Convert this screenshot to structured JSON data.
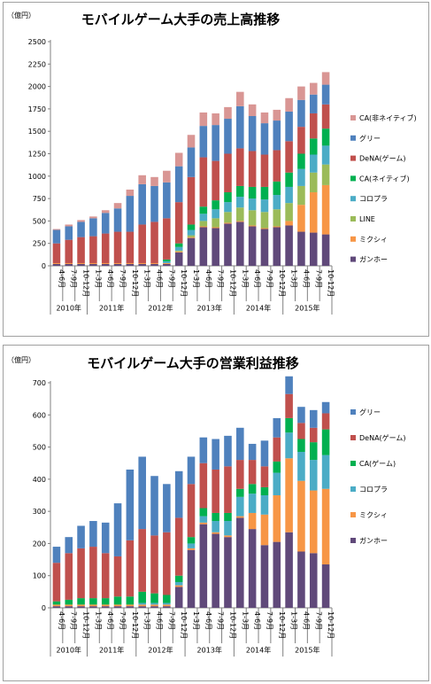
{
  "chart_data": [
    {
      "type": "bar",
      "stacked": true,
      "title": "モバイルゲーム大手の売上高推移",
      "ylabel": "（億円）",
      "ylim": [
        0,
        2500
      ],
      "ytick_step": 250,
      "grid": false,
      "legend_position": "right",
      "categories": [
        "4-6月",
        "7-9月",
        "10-12月",
        "1-3月",
        "4-6月",
        "7-9月",
        "10-12月",
        "1-3月",
        "4-6月",
        "7-9月",
        "10-12月",
        "1-3月",
        "4-6月",
        "7-9月",
        "10-12月",
        "1-3月",
        "4-6月",
        "7-9月",
        "10-12月",
        "1-3月",
        "4-6月",
        "7-9月",
        "10-12月"
      ],
      "year_groups": [
        {
          "label": "2010年",
          "count": 3
        },
        {
          "label": "2011年",
          "count": 4
        },
        {
          "label": "2012年",
          "count": 4
        },
        {
          "label": "2013年",
          "count": 4
        },
        {
          "label": "2014年",
          "count": 4
        },
        {
          "label": "2015年",
          "count": 4
        }
      ],
      "series": [
        {
          "name": "ガンホー",
          "color": "#60497a",
          "values": [
            20,
            20,
            20,
            20,
            20,
            20,
            20,
            20,
            20,
            20,
            150,
            310,
            430,
            420,
            470,
            490,
            440,
            410,
            430,
            450,
            380,
            370,
            350
          ]
        },
        {
          "name": "ミクシィ",
          "color": "#f79646",
          "values": [
            10,
            10,
            10,
            10,
            10,
            10,
            10,
            10,
            10,
            10,
            10,
            10,
            10,
            10,
            10,
            10,
            10,
            10,
            10,
            50,
            300,
            450,
            550
          ]
        },
        {
          "name": "LINE",
          "color": "#9bbb59",
          "values": [
            0,
            0,
            0,
            0,
            0,
            0,
            0,
            0,
            0,
            0,
            10,
            20,
            60,
            100,
            120,
            150,
            170,
            180,
            190,
            200,
            210,
            220,
            230
          ]
        },
        {
          "name": "コロプラ",
          "color": "#4bacc6",
          "values": [
            0,
            0,
            0,
            0,
            0,
            0,
            0,
            0,
            0,
            20,
            40,
            60,
            80,
            100,
            110,
            120,
            130,
            140,
            160,
            180,
            190,
            200,
            210
          ]
        },
        {
          "name": "CA(ネイティブ)",
          "color": "#00b050",
          "values": [
            0,
            0,
            0,
            0,
            0,
            0,
            0,
            0,
            0,
            20,
            40,
            60,
            80,
            100,
            110,
            120,
            130,
            140,
            150,
            160,
            170,
            180,
            190
          ]
        },
        {
          "name": "DeNA(ゲーム)",
          "color": "#c0504d",
          "values": [
            220,
            260,
            290,
            300,
            330,
            350,
            350,
            430,
            460,
            460,
            460,
            530,
            550,
            440,
            430,
            420,
            400,
            360,
            350,
            350,
            300,
            280,
            270
          ]
        },
        {
          "name": "グリー",
          "color": "#4f81bd",
          "values": [
            150,
            150,
            170,
            200,
            230,
            260,
            400,
            450,
            400,
            400,
            400,
            330,
            350,
            400,
            390,
            470,
            390,
            350,
            330,
            330,
            300,
            210,
            220
          ]
        },
        {
          "name": "CA(非ネイティブ)",
          "color": "#d99694",
          "values": [
            10,
            20,
            20,
            20,
            30,
            60,
            70,
            100,
            100,
            130,
            150,
            140,
            150,
            130,
            130,
            160,
            130,
            120,
            120,
            150,
            150,
            130,
            140
          ]
        }
      ]
    },
    {
      "type": "bar",
      "stacked": true,
      "title": "モバイルゲーム大手の営業利益推移",
      "ylabel": "（億円）",
      "ylim": [
        0,
        700
      ],
      "ytick_step": 100,
      "grid": false,
      "legend_position": "right",
      "categories": [
        "4-6月",
        "7-9月",
        "10-12月",
        "1-3月",
        "4-6月",
        "7-9月",
        "10-12月",
        "1-3月",
        "4-6月",
        "7-9月",
        "10-12月",
        "1-3月",
        "4-6月",
        "7-9月",
        "10-12月",
        "1-3月",
        "4-6月",
        "7-9月",
        "10-12月",
        "1-3月",
        "4-6月",
        "7-9月",
        "10-12月"
      ],
      "year_groups": [
        {
          "label": "2010年",
          "count": 3
        },
        {
          "label": "2011年",
          "count": 4
        },
        {
          "label": "2012年",
          "count": 4
        },
        {
          "label": "2013年",
          "count": 4
        },
        {
          "label": "2014年",
          "count": 4
        },
        {
          "label": "2015年",
          "count": 4
        }
      ],
      "series": [
        {
          "name": "ガンホー",
          "color": "#60497a",
          "values": [
            5,
            5,
            5,
            5,
            5,
            5,
            5,
            5,
            5,
            5,
            65,
            180,
            260,
            230,
            220,
            280,
            245,
            195,
            205,
            235,
            175,
            170,
            135
          ]
        },
        {
          "name": "ミクシィ",
          "color": "#f79646",
          "values": [
            5,
            5,
            5,
            5,
            5,
            5,
            5,
            5,
            5,
            5,
            5,
            5,
            5,
            5,
            5,
            5,
            50,
            95,
            145,
            230,
            220,
            195,
            235
          ]
        },
        {
          "name": "コロプラ",
          "color": "#4bacc6",
          "values": [
            0,
            0,
            0,
            0,
            0,
            0,
            0,
            5,
            5,
            5,
            10,
            15,
            20,
            35,
            45,
            60,
            60,
            60,
            70,
            80,
            90,
            95,
            105
          ]
        },
        {
          "name": "CA(ゲーム)",
          "color": "#00b050",
          "values": [
            10,
            15,
            20,
            20,
            20,
            25,
            25,
            35,
            30,
            25,
            20,
            20,
            25,
            25,
            25,
            25,
            30,
            25,
            35,
            45,
            40,
            55,
            80
          ]
        },
        {
          "name": "DeNA(ゲーム)",
          "color": "#c0504d",
          "values": [
            120,
            145,
            155,
            160,
            140,
            125,
            175,
            195,
            180,
            195,
            180,
            165,
            140,
            135,
            145,
            90,
            75,
            65,
            75,
            75,
            50,
            45,
            50
          ]
        },
        {
          "name": "グリー",
          "color": "#4f81bd",
          "values": [
            50,
            50,
            70,
            80,
            95,
            165,
            220,
            225,
            185,
            150,
            145,
            85,
            80,
            95,
            95,
            100,
            50,
            80,
            60,
            55,
            50,
            55,
            35
          ]
        }
      ]
    }
  ]
}
